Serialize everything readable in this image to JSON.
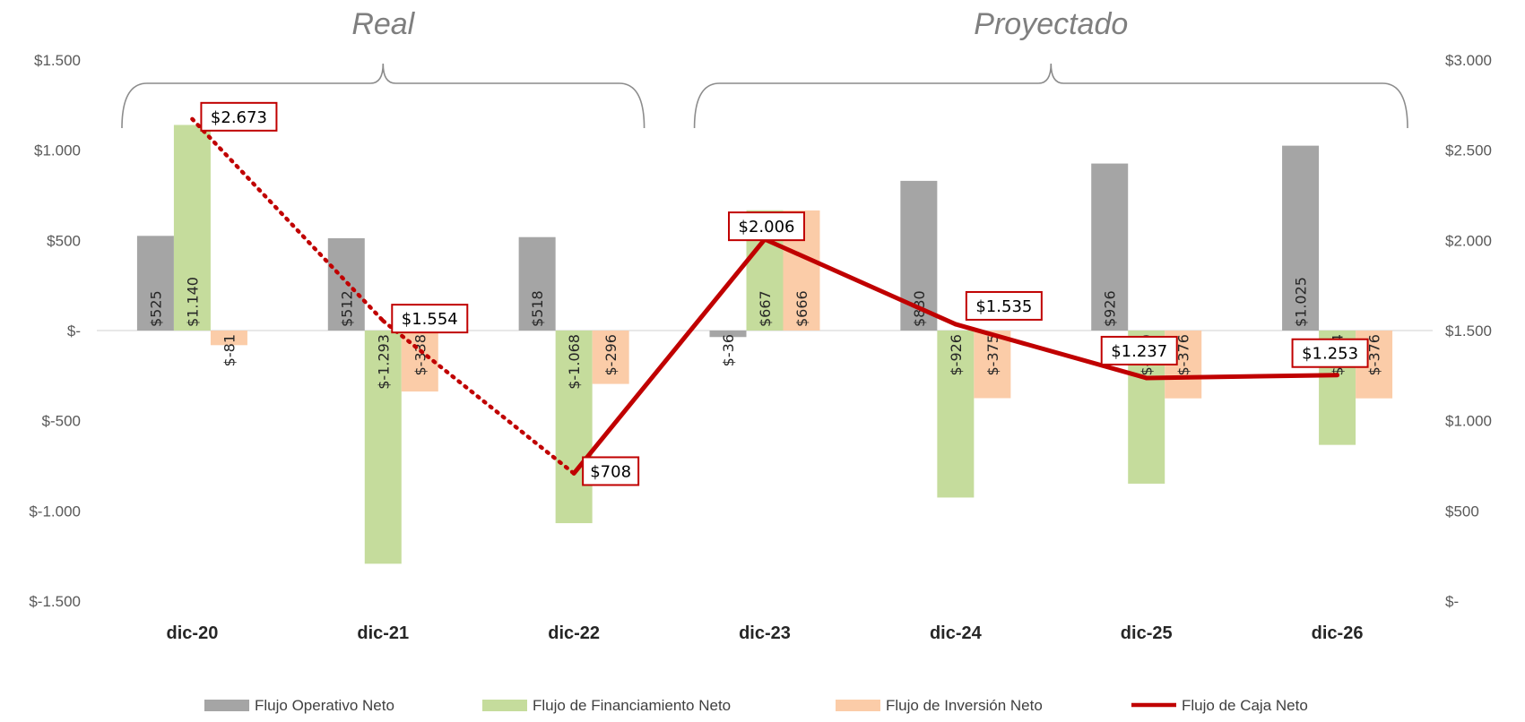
{
  "chart_data": {
    "type": "bar",
    "categories": [
      "dic-20",
      "dic-21",
      "dic-22",
      "dic-23",
      "dic-24",
      "dic-25",
      "dic-26"
    ],
    "groups": [
      {
        "label": "Real",
        "from": 0,
        "to": 2
      },
      {
        "label": "Proyectado",
        "from": 3,
        "to": 6
      }
    ],
    "left_axis": {
      "ylim": [
        -1500,
        1500
      ],
      "ticks": [
        1500,
        1000,
        500,
        0,
        -500,
        -1000,
        -1500
      ],
      "tick_labels": [
        "$1.500",
        "$1.000",
        "$500",
        "$-",
        "$-500",
        "$-1.000",
        "$-1.500"
      ]
    },
    "right_axis": {
      "ylim": [
        0,
        3000
      ],
      "ticks": [
        3000,
        2500,
        2000,
        1500,
        1000,
        500,
        0
      ],
      "tick_labels": [
        "$3.000",
        "$2.500",
        "$2.000",
        "$1.500",
        "$1.000",
        "$500",
        "$-"
      ]
    },
    "series": [
      {
        "name": "Flujo Operativo Neto",
        "type": "bar",
        "axis": "left",
        "color": "#a5a5a5",
        "values": [
          525,
          512,
          518,
          -36,
          830,
          926,
          1025
        ],
        "labels": [
          "$525",
          "$512",
          "$518",
          "$-36",
          "$830",
          "$926",
          "$1.025"
        ]
      },
      {
        "name": "Flujo de Financiamiento Neto",
        "type": "bar",
        "axis": "left",
        "color": "#c5dc9c",
        "values": [
          1140,
          -1293,
          -1068,
          667,
          -926,
          -849,
          -634
        ],
        "labels": [
          "$1.140",
          "$-1.293",
          "$-1.068",
          "$667",
          "$-926",
          "$-849",
          "$-634"
        ]
      },
      {
        "name": "Flujo de Inversión Neto",
        "type": "bar",
        "axis": "left",
        "color": "#fbcca8",
        "values": [
          -81,
          -338,
          -296,
          666,
          -375,
          -376,
          -376
        ],
        "labels": [
          "$-81",
          "$-338",
          "$-296",
          "$666",
          "$-375",
          "$-376",
          "$-376"
        ]
      },
      {
        "name": "Flujo de Caja Neto",
        "type": "line",
        "axis": "right",
        "color": "#c00000",
        "values": [
          2673,
          1554,
          708,
          2006,
          1535,
          1237,
          1253
        ],
        "labels": [
          "$2.673",
          "$1.554",
          "$708",
          "$2.006",
          "$1.535",
          "$1.237",
          "$1.253"
        ],
        "dotted_segments_until_index": 2
      }
    ],
    "legend_position": "bottom",
    "grid": false
  }
}
